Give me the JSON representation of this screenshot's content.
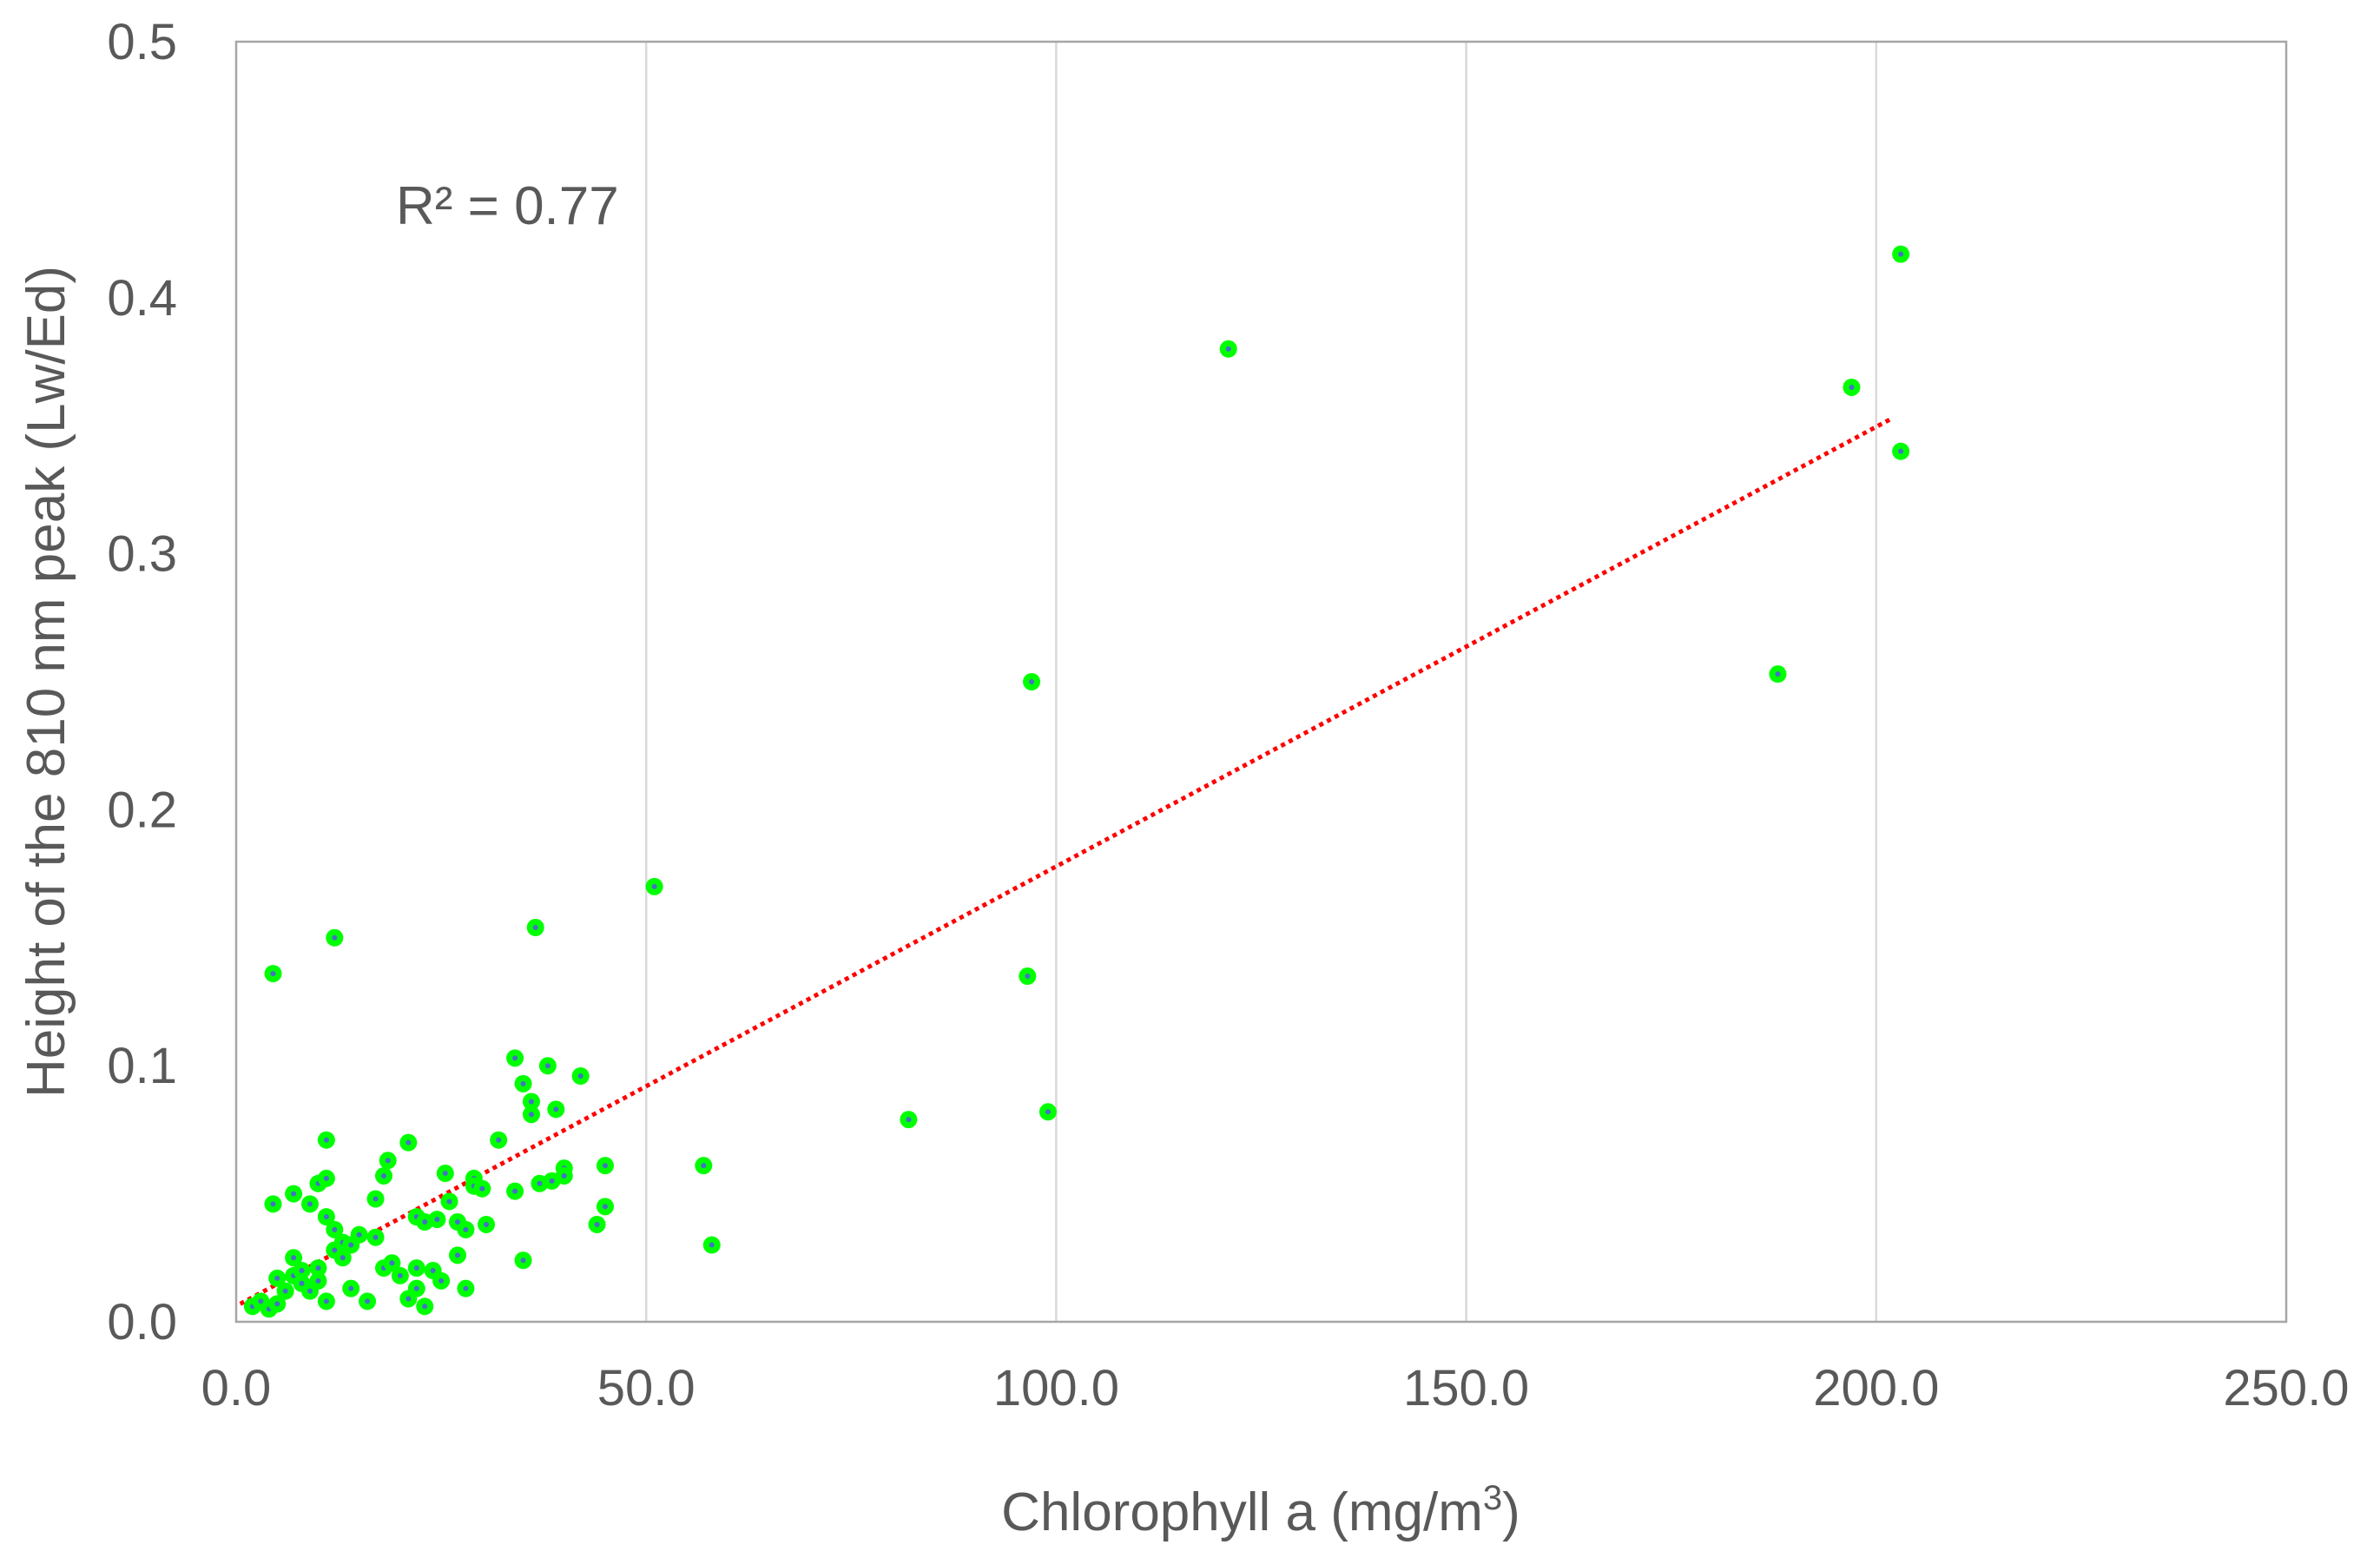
{
  "chart_data": {
    "type": "scatter",
    "title": "",
    "xlabel": "Chlorophyll a (mg/m",
    "xlabel_sup": "3",
    "xlabel_end": ")",
    "ylabel": "Height of the 810 nm peak (Lw/Ed)",
    "xlim": [
      0,
      250
    ],
    "ylim": [
      0,
      0.5
    ],
    "x_ticks": [
      "0.0",
      "50.0",
      "100.0",
      "150.0",
      "200.0",
      "250.0"
    ],
    "y_ticks": [
      "0.0",
      "0.1",
      "0.2",
      "0.3",
      "0.4",
      "0.5"
    ],
    "annotation": "R² = 0.77",
    "grid": "vertical",
    "point_color": "#00ff00",
    "point_center_color": "#4472c4",
    "trendline_color": "#ff0000",
    "trendline": {
      "style": "dotted",
      "x": [
        0.5,
        202
      ],
      "y": [
        0.007,
        0.353
      ]
    },
    "series": [
      {
        "points": [
          [
            2,
            0.006
          ],
          [
            3,
            0.008
          ],
          [
            4,
            0.005
          ],
          [
            5,
            0.007
          ],
          [
            5,
            0.017
          ],
          [
            6,
            0.012
          ],
          [
            7,
            0.018
          ],
          [
            7,
            0.025
          ],
          [
            8,
            0.02
          ],
          [
            8,
            0.015
          ],
          [
            9,
            0.012
          ],
          [
            10,
            0.016
          ],
          [
            10,
            0.021
          ],
          [
            11,
            0.008
          ],
          [
            12,
            0.028
          ],
          [
            13,
            0.025
          ],
          [
            14,
            0.013
          ],
          [
            15,
            0.034
          ],
          [
            16,
            0.008
          ],
          [
            17,
            0.033
          ],
          [
            18,
            0.021
          ],
          [
            19,
            0.023
          ],
          [
            20,
            0.018
          ],
          [
            21,
            0.009
          ],
          [
            22,
            0.013
          ],
          [
            22,
            0.021
          ],
          [
            23,
            0.006
          ],
          [
            24,
            0.02
          ],
          [
            25,
            0.016
          ],
          [
            28,
            0.013
          ],
          [
            4.5,
            0.046
          ],
          [
            7,
            0.05
          ],
          [
            9,
            0.046
          ],
          [
            10,
            0.054
          ],
          [
            11,
            0.056
          ],
          [
            11,
            0.041
          ],
          [
            12,
            0.036
          ],
          [
            13,
            0.031
          ],
          [
            14,
            0.03
          ],
          [
            17,
            0.048
          ],
          [
            18,
            0.057
          ],
          [
            18.5,
            0.063
          ],
          [
            21,
            0.07
          ],
          [
            22,
            0.041
          ],
          [
            23,
            0.039
          ],
          [
            24.5,
            0.04
          ],
          [
            25.5,
            0.058
          ],
          [
            26,
            0.047
          ],
          [
            27,
            0.026
          ],
          [
            27,
            0.039
          ],
          [
            28,
            0.036
          ],
          [
            29,
            0.056
          ],
          [
            29,
            0.053
          ],
          [
            30,
            0.052
          ],
          [
            30.5,
            0.038
          ],
          [
            32,
            0.071
          ],
          [
            34,
            0.051
          ],
          [
            34,
            0.103
          ],
          [
            35,
            0.024
          ],
          [
            35,
            0.093
          ],
          [
            36,
            0.086
          ],
          [
            36,
            0.081
          ],
          [
            37,
            0.054
          ],
          [
            38,
            0.1
          ],
          [
            38.5,
            0.055
          ],
          [
            39,
            0.083
          ],
          [
            40,
            0.06
          ],
          [
            40,
            0.057
          ],
          [
            42,
            0.096
          ],
          [
            44,
            0.038
          ],
          [
            45,
            0.061
          ],
          [
            45,
            0.045
          ],
          [
            11,
            0.071
          ],
          [
            4.5,
            0.136
          ],
          [
            12,
            0.15
          ],
          [
            36.5,
            0.154
          ],
          [
            51,
            0.17
          ],
          [
            57,
            0.061
          ],
          [
            58,
            0.03
          ],
          [
            82,
            0.079
          ],
          [
            96.5,
            0.135
          ],
          [
            97,
            0.25
          ],
          [
            99,
            0.082
          ],
          [
            121,
            0.38
          ],
          [
            188,
            0.253
          ],
          [
            197,
            0.365
          ],
          [
            203,
            0.417
          ],
          [
            203,
            0.34
          ]
        ]
      }
    ]
  }
}
